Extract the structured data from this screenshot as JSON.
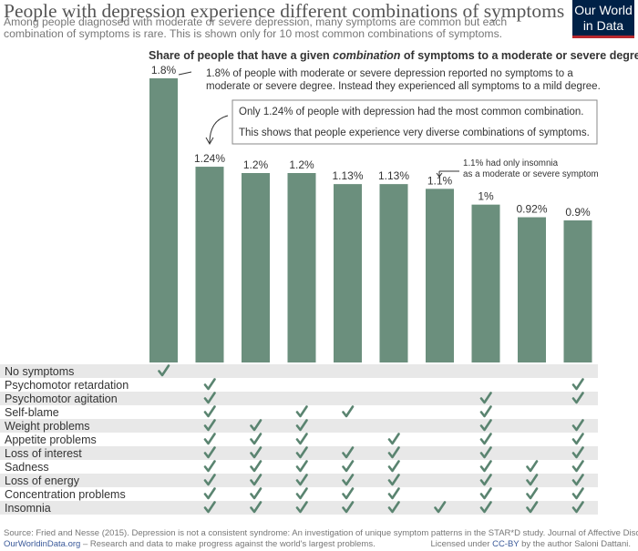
{
  "header": {
    "title": "People with depression experience different combinations of symptoms",
    "subtitle": "Among people diagnosed with moderate or severe depression, many symptoms are common but each combination of symptoms is rare. This is shown only for 10 most common combinations of symptoms.",
    "logo_line1": "Our World",
    "logo_line2": "in Data"
  },
  "chart_data": {
    "type": "bar",
    "title_pre": "Share of people that have a given ",
    "title_em": "combination",
    "title_post": " of symptoms to a moderate or severe degree",
    "bar_color": "#6b8f7d",
    "check_color": "#5a8470",
    "ylim": [
      0,
      1.8
    ],
    "values": [
      1.8,
      1.24,
      1.2,
      1.2,
      1.13,
      1.13,
      1.1,
      1.0,
      0.92,
      0.9
    ],
    "value_labels": [
      "1.8%",
      "1.24%",
      "1.2%",
      "1.2%",
      "1.13%",
      "1.13%",
      "1.1%",
      "1%",
      "0.92%",
      "0.9%"
    ],
    "symptoms": [
      "No symptoms",
      "Psychomotor retardation",
      "Psychomotor agitation",
      "Self-blame",
      "Weight problems",
      "Appetite problems",
      "Loss of interest",
      "Sadness",
      "Loss of energy",
      "Concentration problems",
      "Insomnia"
    ],
    "checks": [
      [
        0
      ],
      [
        1,
        9
      ],
      [
        1,
        7,
        9
      ],
      [
        1,
        3,
        4,
        7
      ],
      [
        1,
        2,
        3,
        7,
        9
      ],
      [
        1,
        2,
        3,
        5,
        7,
        9
      ],
      [
        1,
        2,
        3,
        4,
        5,
        7,
        9
      ],
      [
        1,
        2,
        3,
        4,
        5,
        7,
        8,
        9
      ],
      [
        1,
        2,
        3,
        4,
        5,
        7,
        8,
        9
      ],
      [
        1,
        2,
        3,
        4,
        5,
        7,
        8,
        9
      ],
      [
        1,
        2,
        3,
        4,
        5,
        6,
        7,
        8,
        9
      ]
    ],
    "annotations": [
      {
        "lines": [
          "1.8% of people with moderate or severe depression reported no symptoms to a",
          "moderate or severe degree. Instead they experienced all symptoms to a mild degree."
        ]
      },
      {
        "lines": [
          "Only 1.24% of people with depression had the most common combination.",
          "This shows that people experience very diverse combinations of symptoms."
        ]
      },
      {
        "lines": [
          "1.1% had only insomnia",
          "as a moderate or severe symptom"
        ]
      }
    ]
  },
  "footer": {
    "source": "Source: Fried and Nesse (2015). Depression is not a consistent syndrome: An investigation of unique symptom patterns in the STAR*D study. Journal of Affective Disorders.",
    "site": "OurWorldinData.org",
    "tagline": " – Research and data to make progress against the world's largest problems.",
    "license_pre": "Licensed under ",
    "license_link": "CC-BY",
    "license_post": " by the author Saloni Dattani."
  }
}
